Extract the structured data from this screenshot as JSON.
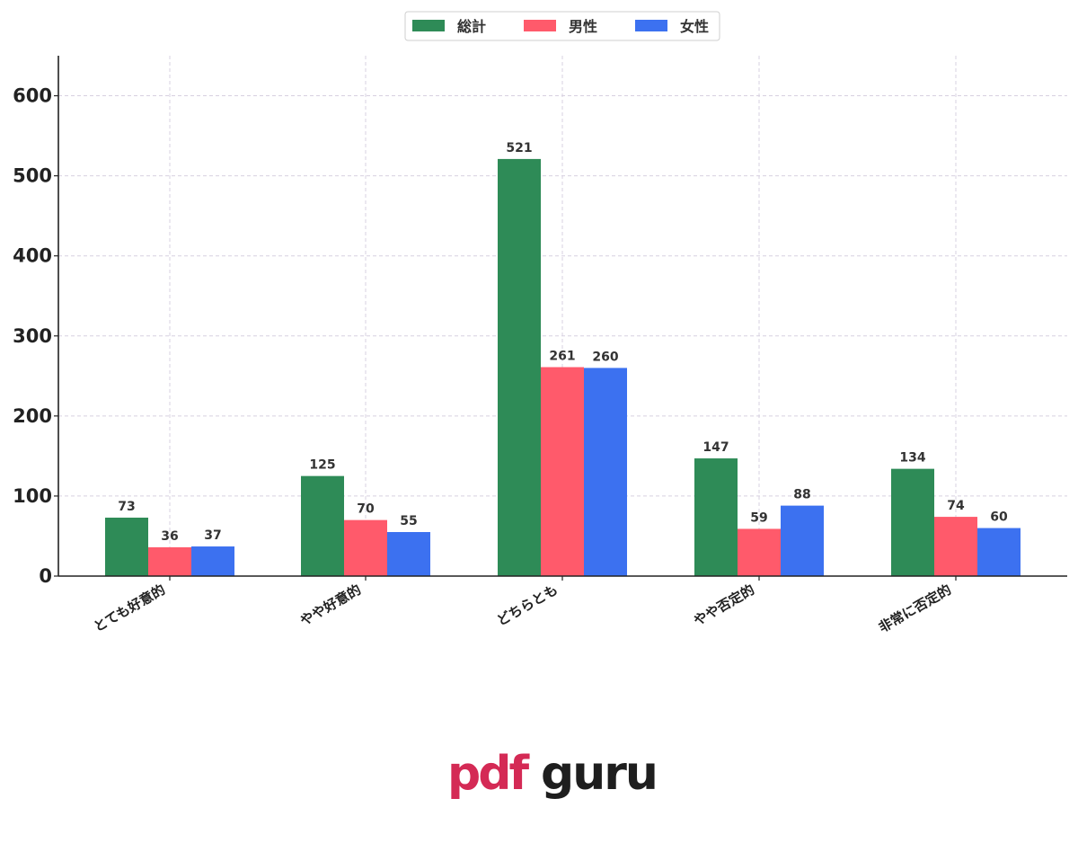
{
  "chart_data": {
    "type": "bar",
    "categories": [
      "とても好意的",
      "やや好意的",
      "どちらとも",
      "やや否定的",
      "非常に否定的"
    ],
    "series": [
      {
        "name": "総計",
        "color": "#2e8b57",
        "values": [
          73,
          125,
          521,
          147,
          134
        ]
      },
      {
        "name": "男性",
        "color": "#ff5a6b",
        "values": [
          36,
          70,
          261,
          59,
          74
        ]
      },
      {
        "name": "女性",
        "color": "#3c71f0",
        "values": [
          37,
          55,
          260,
          88,
          60
        ]
      }
    ],
    "ylim": [
      0,
      650
    ],
    "yticks": [
      0,
      100,
      200,
      300,
      400,
      500,
      600
    ],
    "grid": true,
    "legend_position": "top-center",
    "title": "",
    "xlabel": "",
    "ylabel": ""
  },
  "watermark": {
    "text_left": "pdf",
    "text_right": "guru",
    "color_left": "#d42a55",
    "color_right": "#1e1e1e"
  }
}
